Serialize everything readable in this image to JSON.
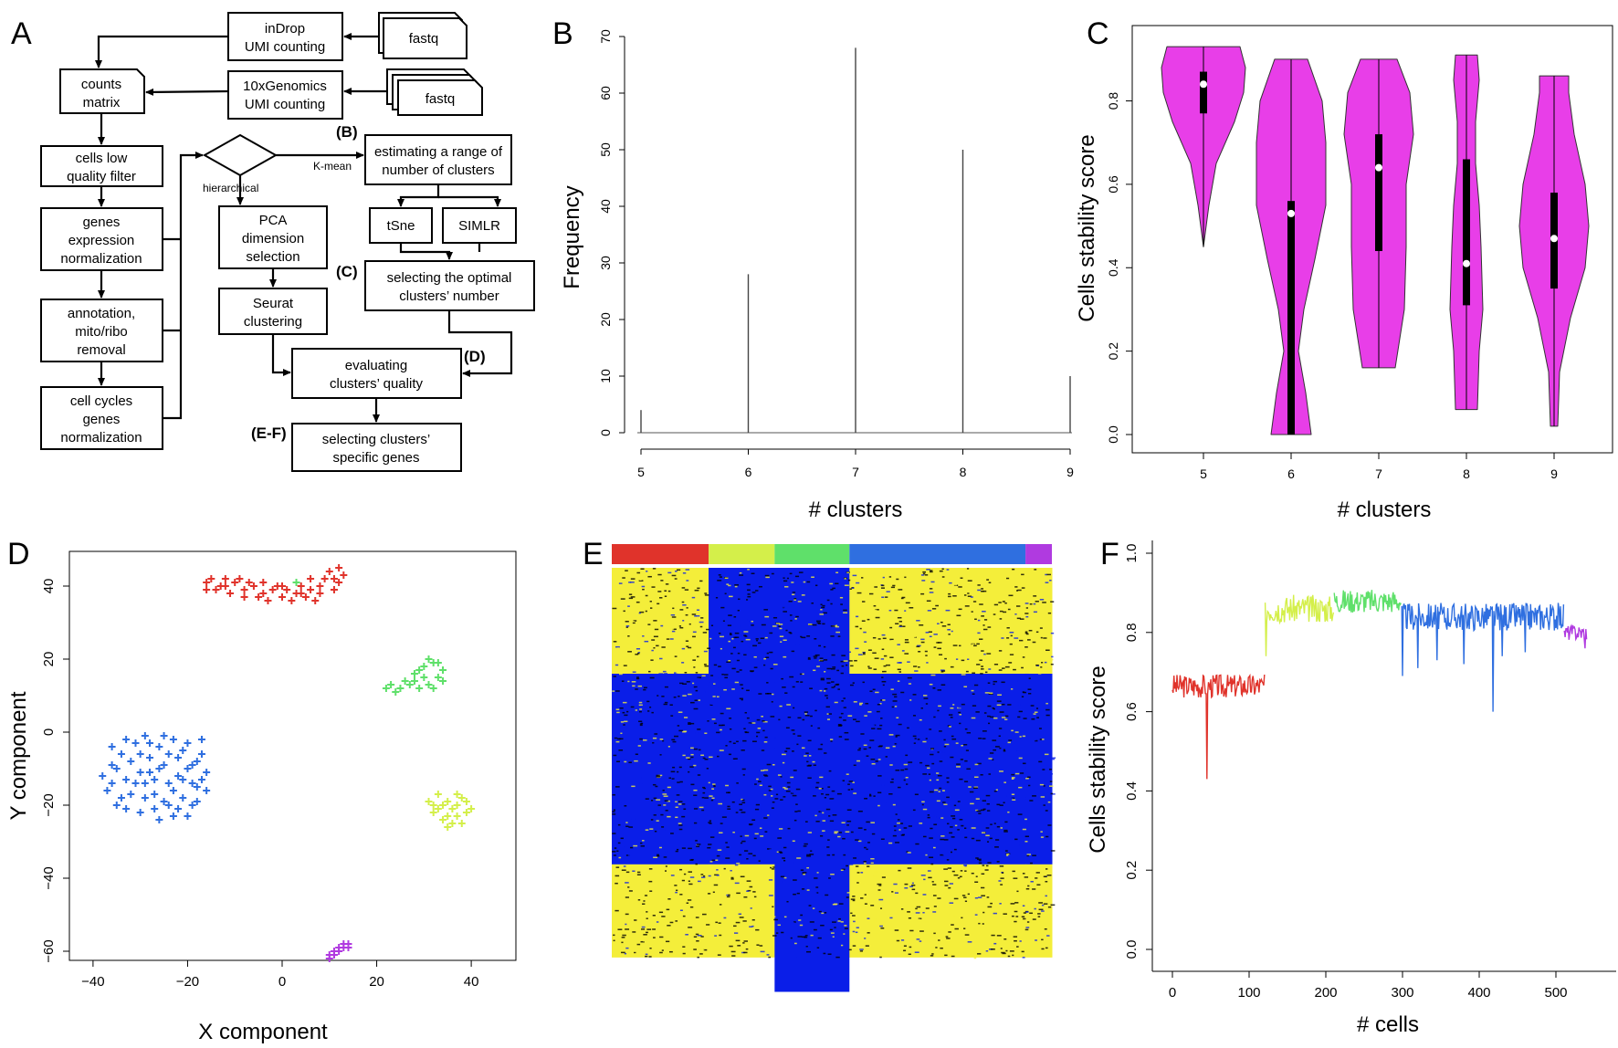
{
  "panel_labels": {
    "a": "A",
    "b": "B",
    "c": "C",
    "d": "D",
    "e": "E",
    "f": "F"
  },
  "flowchart": {
    "boxes": [
      {
        "key": "indrop",
        "lines": [
          "inDrop",
          "UMI counting"
        ]
      },
      {
        "key": "fastq1",
        "lines": [
          "fastq"
        ]
      },
      {
        "key": "tenx",
        "lines": [
          "10xGenomics",
          "UMI counting"
        ]
      },
      {
        "key": "fastq2",
        "lines": [
          "fastq"
        ]
      },
      {
        "key": "counts",
        "lines": [
          "counts",
          "matrix"
        ]
      },
      {
        "key": "lowq",
        "lines": [
          "cells low",
          "quality filter"
        ]
      },
      {
        "key": "norm",
        "lines": [
          "genes",
          "expression",
          "normalization"
        ]
      },
      {
        "key": "annot",
        "lines": [
          "annotation,",
          "mito/ribo",
          "removal"
        ]
      },
      {
        "key": "cellcycle",
        "lines": [
          "cell cycles",
          "genes",
          "normalization"
        ]
      },
      {
        "key": "pca",
        "lines": [
          "PCA",
          "dimension",
          "selection"
        ]
      },
      {
        "key": "seurat",
        "lines": [
          "Seurat",
          "clustering"
        ]
      },
      {
        "key": "estimating",
        "lines": [
          "estimating a range of",
          "number of clusters"
        ]
      },
      {
        "key": "tsne",
        "lines": [
          "tSne"
        ]
      },
      {
        "key": "simlr",
        "lines": [
          "SIMLR"
        ]
      },
      {
        "key": "optimal",
        "lines": [
          "selecting the optimal",
          "clusters’ number"
        ]
      },
      {
        "key": "evaluating",
        "lines": [
          "evaluating",
          "clusters’ quality"
        ]
      },
      {
        "key": "specific",
        "lines": [
          "selecting clusters’",
          "specific genes"
        ]
      }
    ],
    "side_labels": {
      "b": "(B)",
      "c": "(C)",
      "d": "(D)",
      "ef": "(E-F)"
    },
    "branch_labels": {
      "hierarchical": "hierarchical",
      "kmean": "K-mean"
    }
  },
  "colors": {
    "red": "#e0332b",
    "yellowgreen": "#d4ef4a",
    "green": "#5fe06a",
    "blue": "#2f6fe0",
    "purple": "#b03ae0",
    "violin": "#e83ee8",
    "heat_blue": "#0a1ee8",
    "heat_yellow": "#f4ee3a"
  },
  "chart_data": [
    {
      "panel": "B",
      "type": "bar",
      "categories": [
        "5",
        "6",
        "7",
        "8",
        "9"
      ],
      "values": [
        4,
        28,
        68,
        50,
        10
      ],
      "xlabel": "# clusters",
      "ylabel": "Frequency",
      "ylim": [
        0,
        70
      ],
      "yticks": [
        "0",
        "10",
        "20",
        "30",
        "40",
        "50",
        "60",
        "70"
      ],
      "grid": false
    },
    {
      "panel": "C",
      "type": "violin",
      "categories": [
        "5",
        "6",
        "7",
        "8",
        "9"
      ],
      "series": [
        {
          "name": "5",
          "min": 0.45,
          "q1": 0.77,
          "median": 0.84,
          "q3": 0.87,
          "max": 0.93
        },
        {
          "name": "6",
          "min": 0.0,
          "q1": 0.0,
          "median": 0.53,
          "q3": 0.56,
          "max": 0.9
        },
        {
          "name": "7",
          "min": 0.16,
          "q1": 0.44,
          "median": 0.64,
          "q3": 0.72,
          "max": 0.9
        },
        {
          "name": "8",
          "min": 0.06,
          "q1": 0.31,
          "median": 0.41,
          "q3": 0.66,
          "max": 0.91
        },
        {
          "name": "9",
          "min": 0.02,
          "q1": 0.35,
          "median": 0.47,
          "q3": 0.58,
          "max": 0.86
        }
      ],
      "xlabel": "# clusters",
      "ylabel": "Cells stability score",
      "ylim": [
        0,
        0.95
      ],
      "yticks": [
        "0.0",
        "0.2",
        "0.4",
        "0.6",
        "0.8"
      ],
      "grid": false
    },
    {
      "panel": "D",
      "type": "scatter",
      "xlabel": "X component",
      "ylabel": "Y component",
      "xlim": [
        -42,
        45
      ],
      "ylim": [
        -66,
        51
      ],
      "xticks": [
        "−40",
        "−20",
        "0",
        "20",
        "40"
      ],
      "yticks": [
        "−60",
        "−40",
        "−20",
        "0",
        "20",
        "40"
      ],
      "series": [
        {
          "color_key": "red",
          "points": [
            [
              -16,
              41
            ],
            [
              -12,
              40
            ],
            [
              -8,
              39
            ],
            [
              -4,
              38
            ],
            [
              0,
              37
            ],
            [
              4,
              38
            ],
            [
              8,
              40
            ],
            [
              11,
              42
            ],
            [
              -14,
              39
            ],
            [
              -10,
              41
            ],
            [
              -6,
              40
            ],
            [
              -2,
              39
            ],
            [
              2,
              36
            ],
            [
              6,
              39
            ],
            [
              10,
              44
            ],
            [
              12,
              41
            ],
            [
              -15,
              42
            ],
            [
              -11,
              38
            ],
            [
              -7,
              41
            ],
            [
              -3,
              36
            ],
            [
              1,
              39
            ],
            [
              5,
              37
            ],
            [
              9,
              42
            ],
            [
              13,
              43
            ],
            [
              -13,
              40
            ],
            [
              -9,
              42
            ],
            [
              -5,
              37
            ],
            [
              -1,
              40
            ],
            [
              3,
              38
            ],
            [
              7,
              36
            ],
            [
              11,
              39
            ],
            [
              -16,
              39
            ],
            [
              -8,
              37
            ],
            [
              0,
              40
            ],
            [
              8,
              38
            ],
            [
              12,
              45
            ],
            [
              -4,
              41
            ],
            [
              4,
              40
            ],
            [
              -12,
              42
            ],
            [
              6,
              42
            ]
          ]
        },
        {
          "color_key": "green",
          "points": [
            [
              22,
              12
            ],
            [
              24,
              11
            ],
            [
              26,
              14
            ],
            [
              28,
              16
            ],
            [
              30,
              18
            ],
            [
              32,
              19
            ],
            [
              33,
              15
            ],
            [
              31,
              13
            ],
            [
              29,
              12
            ],
            [
              34,
              17
            ],
            [
              27,
              13
            ],
            [
              25,
              12
            ],
            [
              23,
              13
            ],
            [
              30,
              15
            ],
            [
              32,
              12
            ],
            [
              34,
              14
            ],
            [
              29,
              17
            ],
            [
              31,
              20
            ],
            [
              33,
              19
            ],
            [
              28,
              14
            ],
            [
              3,
              41
            ]
          ]
        },
        {
          "color_key": "yellowgreen",
          "points": [
            [
              31,
              -19
            ],
            [
              33,
              -21
            ],
            [
              35,
              -23
            ],
            [
              37,
              -20
            ],
            [
              39,
              -22
            ],
            [
              36,
              -25
            ],
            [
              34,
              -24
            ],
            [
              32,
              -22
            ],
            [
              38,
              -18
            ],
            [
              40,
              -21
            ],
            [
              35,
              -19
            ],
            [
              33,
              -17
            ],
            [
              37,
              -23
            ],
            [
              36,
              -21
            ],
            [
              34,
              -20
            ],
            [
              39,
              -19
            ],
            [
              38,
              -25
            ],
            [
              32,
              -20
            ],
            [
              35,
              -26
            ],
            [
              37,
              -17
            ]
          ]
        },
        {
          "color_key": "blue",
          "points": [
            [
              -38,
              -12
            ],
            [
              -36,
              -4
            ],
            [
              -35,
              -10
            ],
            [
              -34,
              -18
            ],
            [
              -33,
              -2
            ],
            [
              -32,
              -8
            ],
            [
              -31,
              -14
            ],
            [
              -30,
              -22
            ],
            [
              -30,
              -6
            ],
            [
              -29,
              -1
            ],
            [
              -28,
              -11
            ],
            [
              -27,
              -17
            ],
            [
              -26,
              -4
            ],
            [
              -26,
              -24
            ],
            [
              -25,
              -9
            ],
            [
              -24,
              -14
            ],
            [
              -24,
              -20
            ],
            [
              -23,
              -2
            ],
            [
              -22,
              -7
            ],
            [
              -22,
              -12
            ],
            [
              -21,
              -18
            ],
            [
              -20,
              -23
            ],
            [
              -20,
              -3
            ],
            [
              -19,
              -9
            ],
            [
              -18,
              -15
            ],
            [
              -18,
              -19
            ],
            [
              -17,
              -6
            ],
            [
              -16,
              -11
            ],
            [
              -16,
              -16
            ],
            [
              -37,
              -16
            ],
            [
              -35,
              -20
            ],
            [
              -33,
              -13
            ],
            [
              -31,
              -3
            ],
            [
              -29,
              -18
            ],
            [
              -28,
              -7
            ],
            [
              -27,
              -13
            ],
            [
              -25,
              -19
            ],
            [
              -23,
              -16
            ],
            [
              -21,
              -5
            ],
            [
              -19,
              -14
            ],
            [
              -17,
              -2
            ],
            [
              -36,
              -9
            ],
            [
              -32,
              -17
            ],
            [
              -30,
              -11
            ],
            [
              -27,
              -21
            ],
            [
              -24,
              -6
            ],
            [
              -22,
              -21
            ],
            [
              -20,
              -10
            ],
            [
              -18,
              -8
            ],
            [
              -34,
              -6
            ],
            [
              -26,
              -10
            ],
            [
              -25,
              -1
            ],
            [
              -23,
              -23
            ],
            [
              -21,
              -13
            ],
            [
              -33,
              -21
            ],
            [
              -29,
              -14
            ],
            [
              -28,
              -3
            ],
            [
              -19,
              -20
            ],
            [
              -17,
              -13
            ],
            [
              -36,
              -14
            ]
          ]
        },
        {
          "color_key": "purple",
          "points": [
            [
              10,
              -61
            ],
            [
              11,
              -60
            ],
            [
              12,
              -59
            ],
            [
              13,
              -58
            ],
            [
              14,
              -58
            ],
            [
              11,
              -61
            ],
            [
              12,
              -60
            ],
            [
              13,
              -59
            ],
            [
              10,
              -62
            ],
            [
              14,
              -59
            ]
          ]
        }
      ]
    },
    {
      "panel": "E",
      "type": "heatmap",
      "column_groups": [
        {
          "color_key": "red",
          "fraction": 0.22
        },
        {
          "color_key": "yellowgreen",
          "fraction": 0.15
        },
        {
          "color_key": "green",
          "fraction": 0.17
        },
        {
          "color_key": "blue",
          "fraction": 0.4
        },
        {
          "color_key": "purple",
          "fraction": 0.06
        }
      ]
    },
    {
      "panel": "F",
      "type": "line",
      "xlabel": "# cells",
      "ylabel": "Cells stability score",
      "xlim": [
        -10,
        550
      ],
      "ylim": [
        0,
        1.0
      ],
      "xticks": [
        "0",
        "100",
        "200",
        "300",
        "400",
        "500"
      ],
      "yticks": [
        "0.0",
        "0.2",
        "0.4",
        "0.6",
        "0.8",
        "1.0"
      ],
      "series": [
        {
          "color_key": "red",
          "x_range": [
            0,
            120
          ],
          "mean": 0.665,
          "noise": 0.03,
          "dips": [
            [
              45,
              0.43
            ]
          ]
        },
        {
          "color_key": "yellowgreen",
          "x_range": [
            121,
            210
          ],
          "mean": 0.86,
          "noise": 0.035,
          "dips": [
            [
              122,
              0.74
            ]
          ]
        },
        {
          "color_key": "green",
          "x_range": [
            211,
            298
          ],
          "mean": 0.88,
          "noise": 0.03,
          "dips": []
        },
        {
          "color_key": "blue",
          "x_range": [
            299,
            510
          ],
          "mean": 0.84,
          "noise": 0.035,
          "dips": [
            [
              300,
              0.69
            ],
            [
              320,
              0.71
            ],
            [
              345,
              0.73
            ],
            [
              380,
              0.72
            ],
            [
              418,
              0.6
            ],
            [
              430,
              0.74
            ],
            [
              460,
              0.75
            ]
          ]
        },
        {
          "color_key": "purple",
          "x_range": [
            511,
            540
          ],
          "mean": 0.8,
          "noise": 0.02,
          "dips": [
            [
              538,
              0.76
            ]
          ]
        }
      ]
    }
  ]
}
